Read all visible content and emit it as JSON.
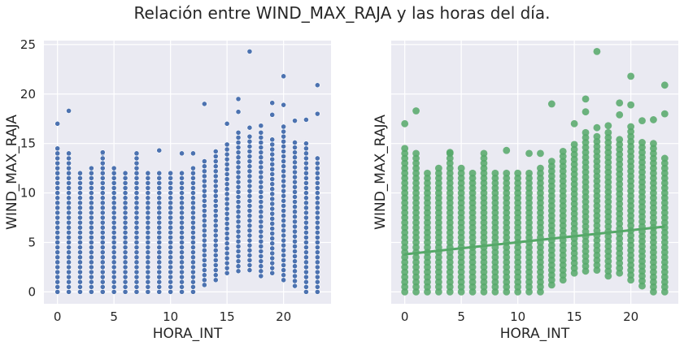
{
  "figure": {
    "title": "Relación entre WIND_MAX_RAJA y las horas del día."
  },
  "colors": {
    "background": "#eaeaf2",
    "grid": "#ffffff",
    "scatter_color": "#4c72b0",
    "regplot_color": "#55a868"
  },
  "chart_data": [
    {
      "type": "scatter",
      "xlabel": "HORA_INT",
      "ylabel": "WIND_MAX_RAJA",
      "xlim": [
        -1.2,
        24.2
      ],
      "ylim": [
        -1.2,
        25.4
      ],
      "xticks": [
        0,
        5,
        10,
        15,
        20
      ],
      "yticks": [
        0,
        5,
        10,
        15,
        20,
        25
      ],
      "grid": true,
      "x_values": "integers 0-23",
      "min_y_by_hour": [
        0,
        0,
        0,
        0,
        0,
        0,
        0,
        0,
        0,
        0,
        0,
        0,
        0,
        0.7,
        1.2,
        1.9,
        2.1,
        2.2,
        1.6,
        1.9,
        1.2,
        0.6,
        0,
        0
      ],
      "max_y_by_hour": [
        14.6,
        14.3,
        12.3,
        12.6,
        14.3,
        12.8,
        12.3,
        14.1,
        12.3,
        12.1,
        12.1,
        12.1,
        12.6,
        13.2,
        14.6,
        15.1,
        16.4,
        16.1,
        16.1,
        15.8,
        16.9,
        15.1,
        15.1,
        13.8
      ],
      "outliers": [
        {
          "x": 0,
          "y": 17.0
        },
        {
          "x": 1,
          "y": 18.3
        },
        {
          "x": 4,
          "y": 14.1
        },
        {
          "x": 9,
          "y": 14.3
        },
        {
          "x": 11,
          "y": 14.0
        },
        {
          "x": 12,
          "y": 14.0
        },
        {
          "x": 13,
          "y": 19.0
        },
        {
          "x": 15,
          "y": 17.0
        },
        {
          "x": 16,
          "y": 19.5
        },
        {
          "x": 16,
          "y": 18.2
        },
        {
          "x": 17,
          "y": 24.3
        },
        {
          "x": 17,
          "y": 16.6
        },
        {
          "x": 18,
          "y": 16.8
        },
        {
          "x": 19,
          "y": 19.1
        },
        {
          "x": 19,
          "y": 17.9
        },
        {
          "x": 20,
          "y": 21.8
        },
        {
          "x": 20,
          "y": 18.9
        },
        {
          "x": 21,
          "y": 17.3
        },
        {
          "x": 22,
          "y": 17.4
        },
        {
          "x": 23,
          "y": 20.9
        },
        {
          "x": 23,
          "y": 18.0
        }
      ]
    },
    {
      "type": "scatter",
      "subtype": "regression",
      "xlabel": "HORA_INT",
      "ylabel": "WIND_MAX_RAJA",
      "xlim": [
        -1.2,
        24.2
      ],
      "ylim": [
        -1.2,
        25.4
      ],
      "xticks": [
        0,
        5,
        10,
        15,
        20
      ],
      "yticks": [
        0,
        5,
        10,
        15,
        20,
        25
      ],
      "grid": true,
      "regression_line": {
        "x": [
          0,
          23
        ],
        "y": [
          3.8,
          6.6
        ]
      }
    }
  ]
}
